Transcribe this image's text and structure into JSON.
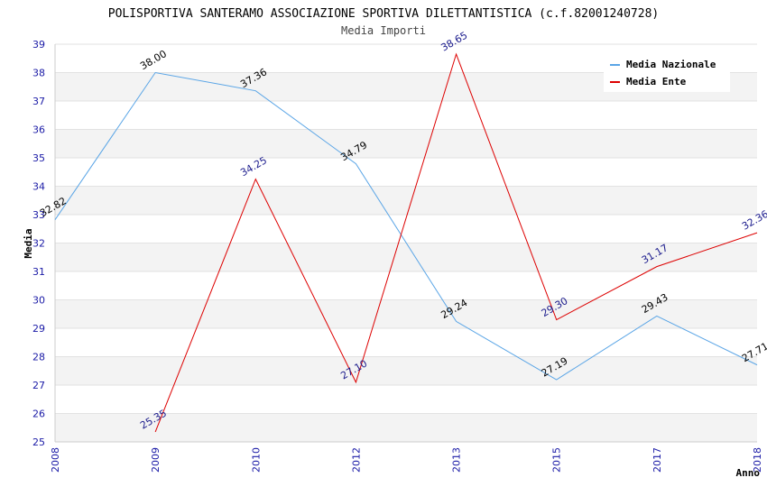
{
  "chart_data": {
    "type": "line",
    "title": "POLISPORTIVA SANTERAMO ASSOCIAZIONE SPORTIVA DILETTANTISTICA (c.f.82001240728)",
    "subtitle": "Media Importi",
    "xlabel": "Anno",
    "ylabel": "Media",
    "ylim": [
      25,
      39
    ],
    "yticks": [
      25,
      26,
      27,
      28,
      29,
      30,
      31,
      32,
      33,
      34,
      35,
      36,
      37,
      38,
      39
    ],
    "categories": [
      "2008",
      "2009",
      "2010",
      "2012",
      "2013",
      "2015",
      "2017",
      "2018"
    ],
    "grid": "horizontal-bands",
    "legend_position": "top-right",
    "series": [
      {
        "name": "Media Nazionale",
        "color": "#5aa5e6",
        "values": [
          32.82,
          38.0,
          37.36,
          34.79,
          29.24,
          27.19,
          29.43,
          27.71
        ],
        "labels": [
          "32.82",
          "38.00",
          "37.36",
          "34.79",
          "29.24",
          "27.19",
          "29.43",
          "27.71"
        ]
      },
      {
        "name": "Media Ente",
        "color": "#dd0000",
        "values": [
          null,
          25.35,
          34.25,
          27.1,
          38.65,
          29.3,
          31.17,
          32.36
        ],
        "labels": [
          "",
          "25.35",
          "34.25",
          "27.10",
          "38.65",
          "29.30",
          "31.17",
          "32.36"
        ]
      }
    ]
  }
}
